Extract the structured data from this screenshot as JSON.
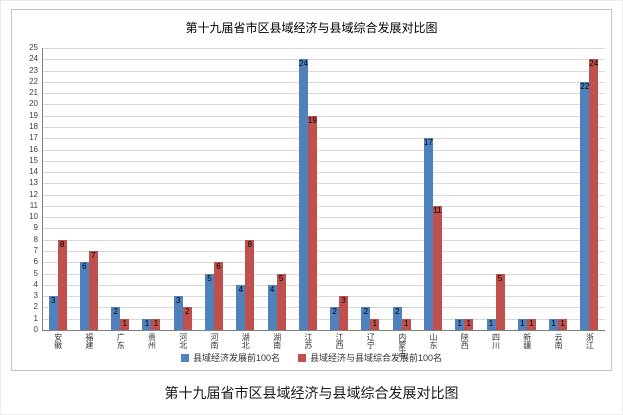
{
  "chart_data": {
    "type": "bar",
    "title": "第十九届省市区县域经济与县域综合发展对比图",
    "categories": [
      "安徽",
      "福建",
      "广东",
      "贵州",
      "河北",
      "河南",
      "湖北",
      "湖南",
      "江苏",
      "江西",
      "辽宁",
      "内蒙古",
      "山东",
      "陕西",
      "四川",
      "新疆",
      "云南",
      "浙江"
    ],
    "series": [
      {
        "name": "县域经济发展前100名",
        "color": "#4f81bd",
        "values": [
          3,
          6,
          2,
          1,
          3,
          5,
          4,
          4,
          24,
          2,
          2,
          2,
          17,
          1,
          1,
          1,
          1,
          22
        ]
      },
      {
        "name": "县域经济与县域综合发展前100名",
        "color": "#c0504d",
        "values": [
          8,
          7,
          1,
          1,
          2,
          6,
          8,
          5,
          19,
          3,
          1,
          1,
          11,
          1,
          5,
          1,
          1,
          24
        ]
      }
    ],
    "ylim": [
      0,
      25
    ],
    "ytick_step": 1,
    "xlabel": "",
    "ylabel": "",
    "grid": "horizontal",
    "legend_position": "bottom"
  },
  "caption": "第十九届省市区县域经济与县域综合发展对比图"
}
